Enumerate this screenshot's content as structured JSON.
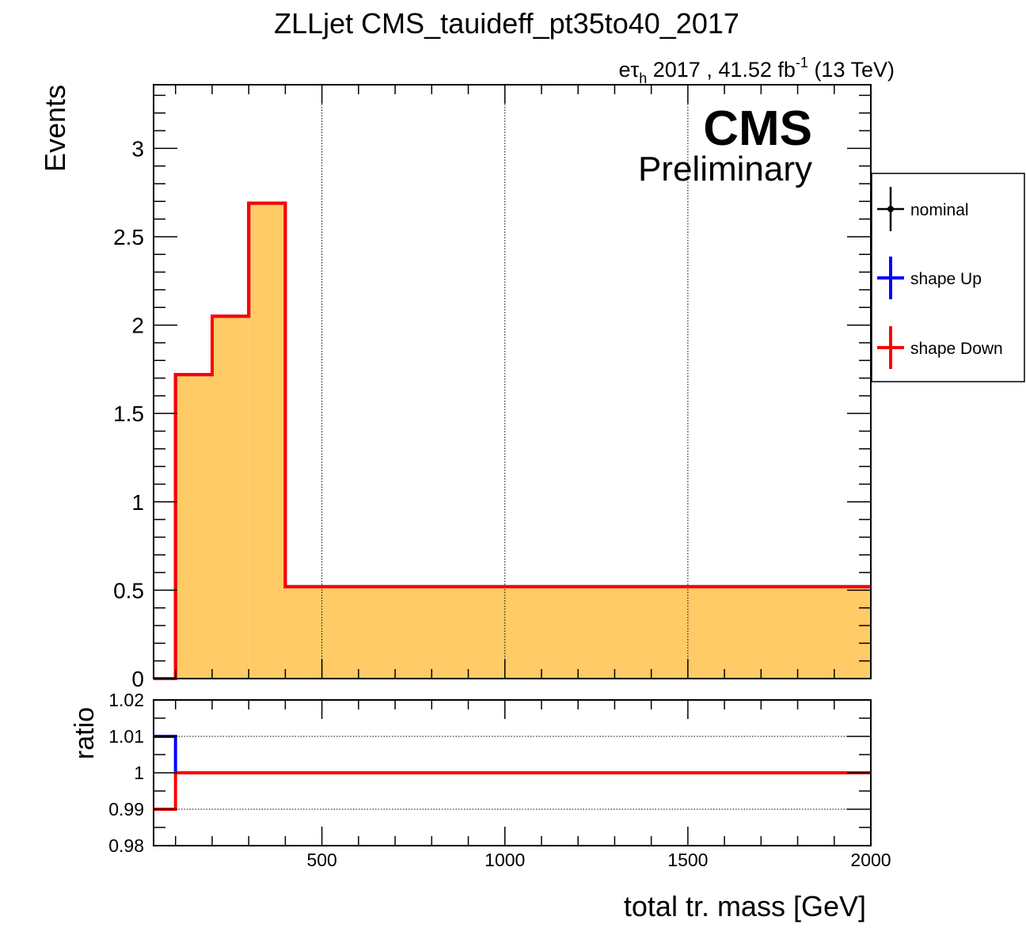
{
  "title": "ZLLjet CMS_tauideff_pt35to40_2017",
  "lumi": {
    "channel_e": "e",
    "channel_tau": "τ",
    "channel_sub": "h",
    "text": "2017 , 41.52 fb",
    "exponent": "-1",
    "energy": "(13 TeV)"
  },
  "cms_label": "CMS",
  "cms_sublabel": "Preliminary",
  "legend": {
    "entries": [
      {
        "label": "nominal",
        "color": "#000000",
        "marker": "point"
      },
      {
        "label": "shape Up",
        "color": "#0000ff",
        "marker": "line"
      },
      {
        "label": "shape Down",
        "color": "#ff0000",
        "marker": "line"
      }
    ]
  },
  "colors": {
    "fill": "#fecb66",
    "nominal": "#000000",
    "up": "#0000ff",
    "down": "#ff0000"
  },
  "chart_data": [
    {
      "type": "histogram",
      "panel": "main",
      "ylabel": "Events",
      "xlim": [
        40,
        2000
      ],
      "ylim": [
        0,
        3.36
      ],
      "y_ticks": [
        0,
        0.5,
        1,
        1.5,
        2,
        2.5,
        3
      ],
      "y_tick_labels": [
        "0",
        "0.5",
        "1",
        "1.5",
        "2",
        "2.5",
        "3"
      ],
      "x_grid": [
        500,
        1000,
        1500
      ],
      "bin_edges": [
        40,
        100,
        200,
        300,
        400,
        2000
      ],
      "series": [
        {
          "name": "nominal",
          "values": [
            0,
            1.72,
            2.05,
            2.69,
            0.52
          ]
        },
        {
          "name": "shape Up",
          "values": [
            0,
            1.72,
            2.05,
            2.69,
            0.52
          ]
        },
        {
          "name": "shape Down",
          "values": [
            0,
            1.72,
            2.05,
            2.69,
            0.52
          ]
        }
      ]
    },
    {
      "type": "line",
      "panel": "ratio",
      "ylabel": "ratio",
      "xlabel": "total tr. mass [GeV]",
      "xlim": [
        40,
        2000
      ],
      "ylim": [
        0.98,
        1.02
      ],
      "x_ticks": [
        500,
        1000,
        1500,
        2000
      ],
      "x_tick_labels": [
        "500",
        "1000",
        "1500",
        "2000"
      ],
      "y_ticks": [
        0.98,
        0.99,
        1,
        1.01,
        1.02
      ],
      "y_tick_labels": [
        "0.98",
        "0.99",
        "1",
        "1.01",
        "1.02"
      ],
      "y_grid": [
        0.99,
        1,
        1.01
      ],
      "bin_edges": [
        40,
        100,
        200,
        300,
        400,
        2000
      ],
      "series": [
        {
          "name": "shape Up",
          "values": [
            1.01,
            1,
            1,
            1,
            1
          ]
        },
        {
          "name": "shape Down",
          "values": [
            0.99,
            1,
            1,
            1,
            1
          ]
        }
      ]
    }
  ]
}
